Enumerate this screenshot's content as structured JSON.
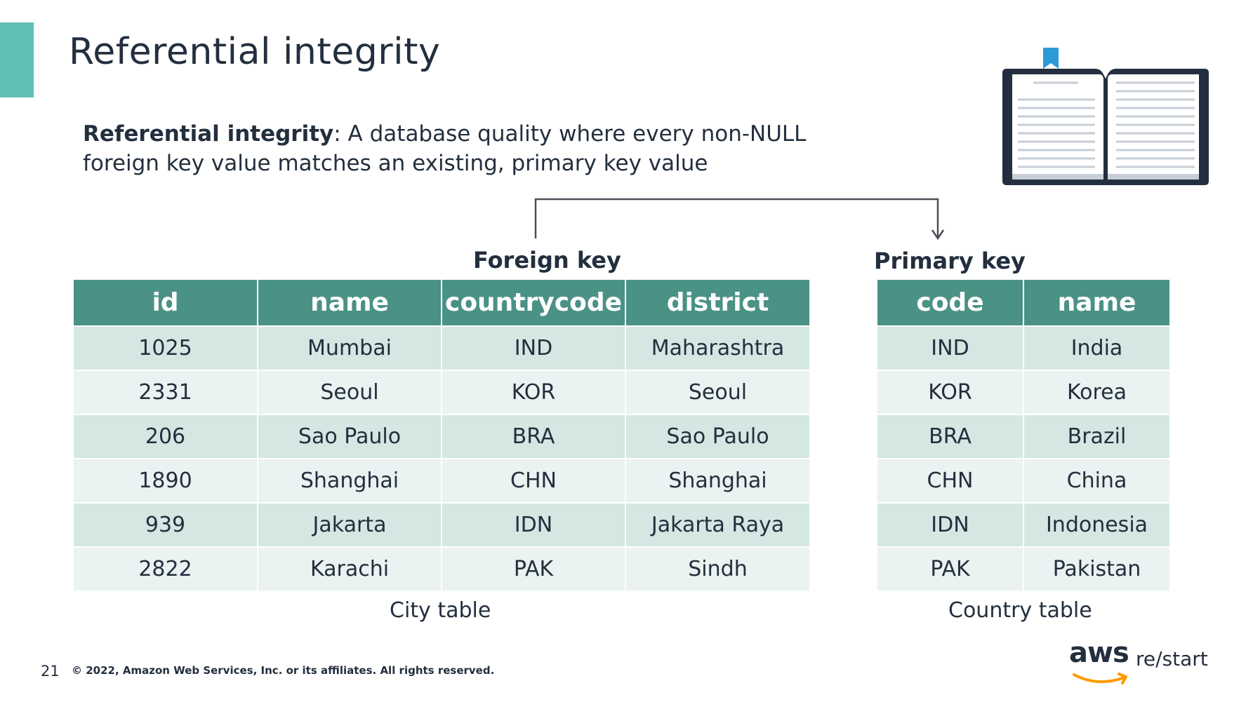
{
  "slide": {
    "title": "Referential integrity",
    "definition_term": "Referential integrity",
    "definition_text": ": A database quality where every non-NULL foreign key value matches an existing, primary key value"
  },
  "labels": {
    "foreign_key": "Foreign key",
    "primary_key": "Primary key"
  },
  "city_table": {
    "caption": "City table",
    "headers": [
      "id",
      "name",
      "countrycode",
      "district"
    ],
    "rows": [
      [
        "1025",
        "Mumbai",
        "IND",
        "Maharashtra"
      ],
      [
        "2331",
        "Seoul",
        "KOR",
        "Seoul"
      ],
      [
        "206",
        "Sao Paulo",
        "BRA",
        "Sao Paulo"
      ],
      [
        "1890",
        "Shanghai",
        "CHN",
        "Shanghai"
      ],
      [
        "939",
        "Jakarta",
        "IDN",
        "Jakarta Raya"
      ],
      [
        "2822",
        "Karachi",
        "PAK",
        "Sindh"
      ]
    ]
  },
  "country_table": {
    "caption": "Country table",
    "headers": [
      "code",
      "name"
    ],
    "rows": [
      [
        "IND",
        "India"
      ],
      [
        "KOR",
        "Korea"
      ],
      [
        "BRA",
        "Brazil"
      ],
      [
        "CHN",
        "China"
      ],
      [
        "IDN",
        "Indonesia"
      ],
      [
        "PAK",
        "Pakistan"
      ]
    ]
  },
  "footer": {
    "page_number": "21",
    "copyright": "© 2022, Amazon Web Services, Inc. or its affiliates. All rights reserved."
  },
  "logo": {
    "brand": "aws",
    "product": "re/start"
  },
  "colors": {
    "accent": "#5fbfb2",
    "header_bg": "#4a9186",
    "row_odd": "#d4e7e3",
    "row_even": "#eaf3f1",
    "text": "#232f3e",
    "aws_orange": "#ff9900",
    "bookmark": "#2d9ad8"
  }
}
